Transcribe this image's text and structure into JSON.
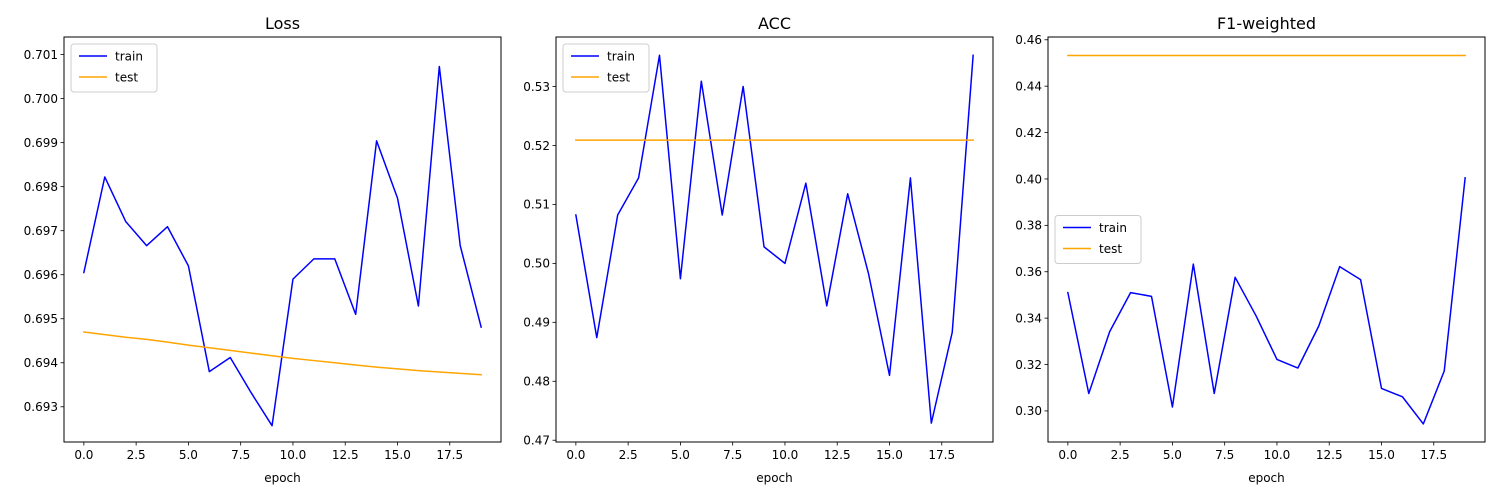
{
  "chart_data": [
    {
      "type": "line",
      "title": "Loss",
      "xlabel": "epoch",
      "ylabel": "",
      "xlim": [
        -0.95,
        19.95
      ],
      "ylim": [
        0.6922,
        0.7014
      ],
      "xticks": [
        0,
        2.5,
        5,
        7.5,
        10,
        12.5,
        15,
        17.5
      ],
      "xtick_labels": [
        "0.0",
        "2.5",
        "5.0",
        "7.5",
        "10.0",
        "12.5",
        "15.0",
        "17.5"
      ],
      "yticks": [
        0.693,
        0.694,
        0.695,
        0.696,
        0.697,
        0.698,
        0.699,
        0.7,
        0.701
      ],
      "ytick_labels": [
        "0.693",
        "0.694",
        "0.695",
        "0.696",
        "0.697",
        "0.698",
        "0.699",
        "0.700",
        "0.701"
      ],
      "grid": false,
      "legend_position": "top-left",
      "x": [
        0,
        1,
        2,
        3,
        4,
        5,
        6,
        7,
        8,
        9,
        10,
        11,
        12,
        13,
        14,
        15,
        16,
        17,
        18,
        19
      ],
      "series": [
        {
          "name": "train",
          "color": "#0000ff",
          "values": [
            0.69605,
            0.69822,
            0.69721,
            0.69666,
            0.69709,
            0.6962,
            0.6938,
            0.69412,
            0.69332,
            0.69257,
            0.6959,
            0.69636,
            0.69636,
            0.6951,
            0.69904,
            0.69774,
            0.69529,
            0.70073,
            0.69666,
            0.69481
          ]
        },
        {
          "name": "test",
          "color": "#ffa500",
          "values": [
            0.6947,
            0.69464,
            0.69458,
            0.69453,
            0.69447,
            0.6944,
            0.69434,
            0.69428,
            0.69422,
            0.69416,
            0.6941,
            0.69405,
            0.694,
            0.69395,
            0.6939,
            0.69386,
            0.69382,
            0.69379,
            0.69376,
            0.69373
          ]
        }
      ]
    },
    {
      "type": "line",
      "title": "ACC",
      "xlabel": "epoch",
      "ylabel": "",
      "xlim": [
        -0.95,
        19.95
      ],
      "ylim": [
        0.4697,
        0.5384
      ],
      "xticks": [
        0,
        2.5,
        5,
        7.5,
        10,
        12.5,
        15,
        17.5
      ],
      "xtick_labels": [
        "0.0",
        "2.5",
        "5.0",
        "7.5",
        "10.0",
        "12.5",
        "15.0",
        "17.5"
      ],
      "yticks": [
        0.47,
        0.48,
        0.49,
        0.5,
        0.51,
        0.52,
        0.53
      ],
      "ytick_labels": [
        "0.47",
        "0.48",
        "0.49",
        "0.50",
        "0.51",
        "0.52",
        "0.53"
      ],
      "grid": false,
      "legend_position": "top-left",
      "x": [
        0,
        1,
        2,
        3,
        4,
        5,
        6,
        7,
        8,
        9,
        10,
        11,
        12,
        13,
        14,
        15,
        16,
        17,
        18,
        19
      ],
      "series": [
        {
          "name": "train",
          "color": "#0000ff",
          "values": [
            0.5082,
            0.4874,
            0.5082,
            0.5145,
            0.5353,
            0.4974,
            0.5309,
            0.5082,
            0.53,
            0.5028,
            0.5,
            0.5136,
            0.4928,
            0.5118,
            0.4982,
            0.481,
            0.5145,
            0.4729,
            0.4883,
            0.5353
          ]
        },
        {
          "name": "test",
          "color": "#ffa500",
          "values": [
            0.5209,
            0.5209,
            0.5209,
            0.5209,
            0.5209,
            0.5209,
            0.5209,
            0.5209,
            0.5209,
            0.5209,
            0.5209,
            0.5209,
            0.5209,
            0.5209,
            0.5209,
            0.5209,
            0.5209,
            0.5209,
            0.5209,
            0.5209
          ]
        }
      ]
    },
    {
      "type": "line",
      "title": "F1-weighted",
      "xlabel": "epoch",
      "ylabel": "",
      "xlim": [
        -0.95,
        19.95
      ],
      "ylim": [
        0.2866,
        0.4612
      ],
      "xticks": [
        0,
        2.5,
        5,
        7.5,
        10,
        12.5,
        15,
        17.5
      ],
      "xtick_labels": [
        "0.0",
        "2.5",
        "5.0",
        "7.5",
        "10.0",
        "12.5",
        "15.0",
        "17.5"
      ],
      "yticks": [
        0.3,
        0.32,
        0.34,
        0.36,
        0.38,
        0.4,
        0.42,
        0.44,
        0.46
      ],
      "ytick_labels": [
        "0.30",
        "0.32",
        "0.34",
        "0.36",
        "0.38",
        "0.40",
        "0.42",
        "0.44",
        "0.46"
      ],
      "grid": false,
      "legend_position": "center-left",
      "x": [
        0,
        1,
        2,
        3,
        4,
        5,
        6,
        7,
        8,
        9,
        10,
        11,
        12,
        13,
        14,
        15,
        16,
        17,
        18,
        19
      ],
      "series": [
        {
          "name": "train",
          "color": "#0000ff",
          "values": [
            0.351,
            0.3075,
            0.3342,
            0.351,
            0.3494,
            0.3017,
            0.3633,
            0.3075,
            0.3576,
            0.341,
            0.3222,
            0.3185,
            0.3366,
            0.3622,
            0.3566,
            0.3097,
            0.3061,
            0.2944,
            0.3172,
            0.4005
          ]
        },
        {
          "name": "test",
          "color": "#ffa500",
          "values": [
            0.4532,
            0.4532,
            0.4532,
            0.4532,
            0.4532,
            0.4532,
            0.4532,
            0.4532,
            0.4532,
            0.4532,
            0.4532,
            0.4532,
            0.4532,
            0.4532,
            0.4532,
            0.4532,
            0.4532,
            0.4532,
            0.4532,
            0.4532
          ]
        }
      ]
    }
  ]
}
